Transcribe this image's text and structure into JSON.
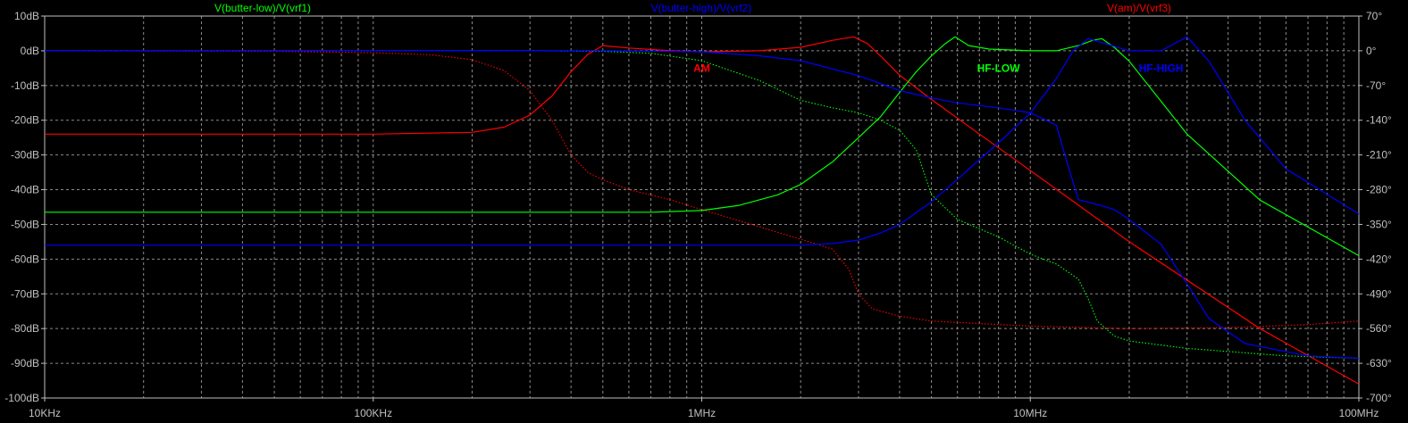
{
  "chart_data": {
    "type": "line",
    "title": "",
    "xlabel": "",
    "ylabel": "",
    "xscale": "log",
    "xlim": [
      10000,
      100000000
    ],
    "ylim_left": [
      -100,
      10
    ],
    "ylim_right": [
      -700,
      70
    ],
    "grid": true,
    "background": "#000000",
    "grid_color": "#8a8a8a",
    "axis_color": "#c0c0c0",
    "x_ticks": [
      {
        "value": 10000,
        "label": "10KHz"
      },
      {
        "value": 100000,
        "label": "100KHz"
      },
      {
        "value": 1000000,
        "label": "1MHz"
      },
      {
        "value": 10000000,
        "label": "10MHz"
      },
      {
        "value": 100000000,
        "label": "100MHz"
      }
    ],
    "y_left_ticks": [
      {
        "value": 10,
        "label": "10dB"
      },
      {
        "value": 0,
        "label": "0dB"
      },
      {
        "value": -10,
        "label": "-10dB"
      },
      {
        "value": -20,
        "label": "-20dB"
      },
      {
        "value": -30,
        "label": "-30dB"
      },
      {
        "value": -40,
        "label": "-40dB"
      },
      {
        "value": -50,
        "label": "-50dB"
      },
      {
        "value": -60,
        "label": "-60dB"
      },
      {
        "value": -70,
        "label": "-70dB"
      },
      {
        "value": -80,
        "label": "-80dB"
      },
      {
        "value": -90,
        "label": "-90dB"
      },
      {
        "value": -100,
        "label": "-100dB"
      }
    ],
    "y_right_ticks": [
      {
        "value": 70,
        "label": "70°"
      },
      {
        "value": 0,
        "label": "0°"
      },
      {
        "value": -70,
        "label": "-70°"
      },
      {
        "value": -140,
        "label": "-140°"
      },
      {
        "value": -210,
        "label": "-210°"
      },
      {
        "value": -280,
        "label": "-280°"
      },
      {
        "value": -350,
        "label": "-350°"
      },
      {
        "value": -420,
        "label": "-420°"
      },
      {
        "value": -490,
        "label": "-490°"
      },
      {
        "value": -560,
        "label": "-560°"
      },
      {
        "value": -630,
        "label": "-630°"
      },
      {
        "value": -700,
        "label": "-700°"
      }
    ],
    "trace_titles": [
      {
        "name": "V(butter-low)/V(vrf1)",
        "color": "#00ff00",
        "position": "top-left"
      },
      {
        "name": "V(butter-high)/V(vrf2)",
        "color": "#0000ff",
        "position": "top-center"
      },
      {
        "name": "V(am)/V(vrf3)",
        "color": "#ff0000",
        "position": "top-right"
      }
    ],
    "annotations": [
      {
        "text": "AM",
        "color": "#ff0000",
        "x": 1000000,
        "y": -5
      },
      {
        "text": "HF-LOW",
        "color": "#00ff00",
        "x": 8000000,
        "y": -5
      },
      {
        "text": "HF-HIGH",
        "color": "#0000ff",
        "x": 25000000,
        "y": -5
      }
    ],
    "series": [
      {
        "name": "V(am)/V(vrf3)",
        "quantity": "magnitude",
        "axis": "left",
        "style": "solid",
        "color": "#ff0000",
        "x": [
          10000,
          100000,
          200000,
          250000,
          300000,
          350000,
          400000,
          450000,
          500000,
          600000,
          800000,
          1000000,
          1500000,
          2000000,
          2500000,
          2900000,
          3200000,
          3500000,
          4000000,
          5000000,
          7000000,
          10000000,
          20000000,
          50000000,
          100000000
        ],
        "y": [
          -24,
          -24,
          -23.5,
          -22,
          -18.5,
          -13,
          -6,
          -1,
          1.5,
          0.8,
          0,
          -0.3,
          0,
          1,
          3,
          4,
          2,
          -1.5,
          -7,
          -14,
          -24,
          -34.5,
          -55,
          -80,
          -96
        ]
      },
      {
        "name": "V(am)/V(vrf3)",
        "quantity": "phase",
        "axis": "right",
        "style": "dotted",
        "color": "#ff0000",
        "x": [
          10000,
          50000,
          100000,
          150000,
          200000,
          250000,
          300000,
          350000,
          400000,
          450000,
          500000,
          600000,
          800000,
          1000000,
          1500000,
          2000000,
          2500000,
          2800000,
          3000000,
          3300000,
          4000000,
          5000000,
          7000000,
          10000000,
          20000000,
          40000000,
          70000000,
          100000000
        ],
        "y": [
          0,
          -1,
          -4,
          -8,
          -18,
          -40,
          -80,
          -140,
          -210,
          -245,
          -260,
          -280,
          -300,
          -320,
          -355,
          -380,
          -400,
          -440,
          -490,
          -520,
          -535,
          -545,
          -550,
          -555,
          -560,
          -558,
          -552,
          -545
        ]
      },
      {
        "name": "V(butter-low)/V(vrf1)",
        "quantity": "magnitude",
        "axis": "left",
        "style": "solid",
        "color": "#00ff00",
        "x": [
          10000,
          700000,
          1000000,
          1300000,
          1700000,
          2000000,
          2500000,
          3000000,
          3500000,
          4000000,
          4500000,
          5000000,
          5500000,
          5900000,
          6500000,
          7500000,
          10000000,
          12000000,
          14000000,
          15500000,
          16500000,
          18000000,
          20000000,
          30000000,
          50000000,
          100000000
        ],
        "y": [
          -46.5,
          -46.5,
          -46,
          -44.5,
          -41.5,
          -38.5,
          -32,
          -25,
          -19,
          -12,
          -6,
          -1.5,
          2,
          4,
          1.5,
          0.5,
          0,
          0,
          1.5,
          3,
          3.5,
          1,
          -3,
          -24,
          -43,
          -59
        ]
      },
      {
        "name": "V(butter-low)/V(vrf1)",
        "quantity": "phase",
        "axis": "right",
        "style": "dotted",
        "color": "#00ff00",
        "x": [
          10000,
          300000,
          500000,
          700000,
          1000000,
          1500000,
          2000000,
          2500000,
          3000000,
          3500000,
          4000000,
          4500000,
          5000000,
          6000000,
          8000000,
          10000000,
          12000000,
          14000000,
          15000000,
          16000000,
          18000000,
          20000000,
          30000000,
          60000000,
          100000000
        ],
        "y": [
          0,
          0,
          -1,
          -5,
          -20,
          -60,
          -100,
          -115,
          -125,
          -140,
          -160,
          -200,
          -290,
          -340,
          -375,
          -410,
          -430,
          -460,
          -500,
          -545,
          -575,
          -585,
          -600,
          -615,
          -620
        ]
      },
      {
        "name": "V(butter-high)/V(vrf2)",
        "quantity": "magnitude",
        "axis": "left",
        "style": "solid",
        "color": "#0000ff",
        "x": [
          10000,
          2000000,
          2500000,
          3000000,
          3500000,
          4000000,
          5000000,
          6000000,
          8000000,
          10000000,
          12000000,
          13500000,
          15000000,
          17000000,
          20000000,
          25000000,
          30000000,
          35000000,
          45000000,
          60000000,
          100000000
        ],
        "y": [
          -56,
          -56,
          -55.5,
          -54.5,
          -52.5,
          -50,
          -43.5,
          -37,
          -26.5,
          -18,
          -8,
          0,
          3.5,
          2,
          0,
          0,
          4,
          -3,
          -20,
          -34,
          -47
        ]
      },
      {
        "name": "V(butter-high)/V(vrf2)",
        "quantity": "phase",
        "axis": "right",
        "style": "solid",
        "color": "#0000ff",
        "x": [
          10000,
          500000,
          1000000,
          1500000,
          2000000,
          3000000,
          4000000,
          5000000,
          6000000,
          8000000,
          10000000,
          12000000,
          13000000,
          14000000,
          16000000,
          18000000,
          20000000,
          25000000,
          30000000,
          35000000,
          45000000,
          70000000,
          100000000
        ],
        "y": [
          0,
          0,
          -2,
          -10,
          -20,
          -50,
          -80,
          -95,
          -105,
          -115,
          -125,
          -150,
          -230,
          -300,
          -310,
          -320,
          -340,
          -390,
          -470,
          -540,
          -590,
          -615,
          -620
        ]
      }
    ]
  }
}
